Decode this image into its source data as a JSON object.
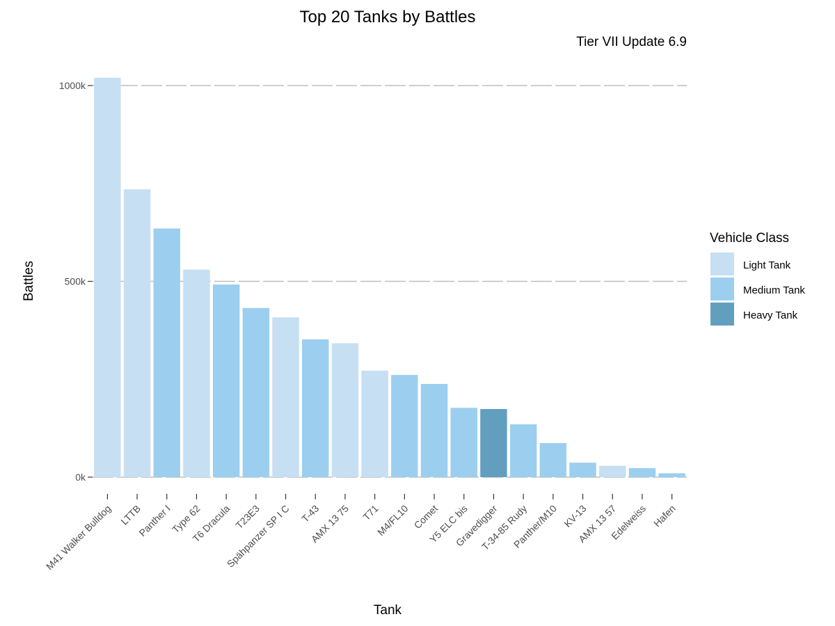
{
  "chart_data": {
    "type": "bar",
    "title": "Top 20 Tanks by Battles",
    "subtitle": "Tier VII Update 6.9",
    "xlabel": "Tank",
    "ylabel": "Battles",
    "ylim": [
      0,
      1040000
    ],
    "yticks": [
      {
        "value": 0,
        "label": "0k"
      },
      {
        "value": 500000,
        "label": "500k"
      },
      {
        "value": 1000000,
        "label": "1000k"
      }
    ],
    "grid": "horizontal",
    "legend": {
      "title": "Vehicle Class",
      "position": "right",
      "entries": [
        {
          "key": "light",
          "label": "Light Tank",
          "color": "#c6dff2"
        },
        {
          "key": "medium",
          "label": "Medium Tank",
          "color": "#9ccfef"
        },
        {
          "key": "heavy",
          "label": "Heavy Tank",
          "color": "#629fbf"
        }
      ]
    },
    "categories": [
      "M41 Walker Bulldog",
      "LTTB",
      "Panther I",
      "Type 62",
      "T6 Dracula",
      "T23E3",
      "Spähpanzer SP I C",
      "T-43",
      "AMX 13 75",
      "T71",
      "M4/FL10",
      "Comet",
      "Y5 ELC bis",
      "Gravedigger",
      "T-34-85 Rudy",
      "Panther/M10",
      "KV-13",
      "AMX 13 57",
      "Edelweiss",
      "Hafen"
    ],
    "values": [
      1020000,
      735000,
      635000,
      530000,
      492000,
      432000,
      408000,
      352000,
      342000,
      272000,
      261000,
      238000,
      177000,
      174000,
      135000,
      87000,
      37000,
      29000,
      23000,
      10000
    ],
    "classes": [
      "light",
      "light",
      "medium",
      "light",
      "medium",
      "medium",
      "light",
      "medium",
      "light",
      "light",
      "medium",
      "medium",
      "medium",
      "heavy",
      "medium",
      "medium",
      "medium",
      "light",
      "medium",
      "medium"
    ]
  }
}
